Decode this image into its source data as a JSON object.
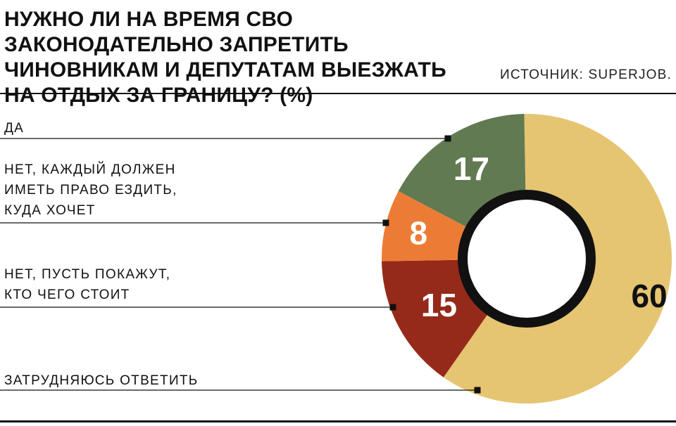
{
  "title_lines": [
    "НУЖНО ЛИ НА ВРЕМЯ СВО ЗАКОНОДАТЕЛЬНО ЗАПРЕТИТЬ",
    "ЧИНОВНИКАМ И ДЕПУТАТАМ ВЫЕЗЖАТЬ",
    "НА ОТДЫХ ЗА ГРАНИЦУ? (%)"
  ],
  "source": "ИСТОЧНИК: SUPERJOB.",
  "legend": [
    {
      "lines": [
        "ДА"
      ]
    },
    {
      "lines": [
        "НЕТ, КАЖДЫЙ ДОЛЖЕН",
        "ИМЕТЬ ПРАВО ЕЗДИТЬ,",
        "КУДА ХОЧЕТ"
      ]
    },
    {
      "lines": [
        "НЕТ, ПУСТЬ ПОКАЖУТ,",
        "КТО ЧЕГО СТОИТ"
      ]
    },
    {
      "lines": [
        "ЗАТРУДНЯЮСЬ ОТВЕТИТЬ"
      ]
    }
  ],
  "chart_data": {
    "type": "pie",
    "title": "НУЖНО ЛИ НА ВРЕМЯ СВО ЗАКОНОДАТЕЛЬНО ЗАПРЕТИТЬ ЧИНОВНИКАМ И ДЕПУТАТАМ ВЫЕЗЖАТЬ НА ОТДЫХ ЗА ГРАНИЦУ? (%)",
    "categories": [
      "ДА",
      "НЕТ, КАЖДЫЙ ДОЛЖЕН ИМЕТЬ ПРАВО ЕЗДИТЬ, КУДА ХОЧЕТ",
      "НЕТ, ПУСТЬ ПОКАЖУТ, КТО ЧЕГО СТОИТ",
      "ЗАТРУДНЯЮСЬ ОТВЕТИТЬ"
    ],
    "values": [
      60,
      15,
      8,
      17
    ],
    "data_labels": [
      "60",
      "15",
      "8",
      "17"
    ],
    "colors": [
      "#e6c572",
      "#962a1a",
      "#ec7c35",
      "#617a52"
    ],
    "style": "donut with black inner ring, legend as left-side text labels with leader lines"
  }
}
